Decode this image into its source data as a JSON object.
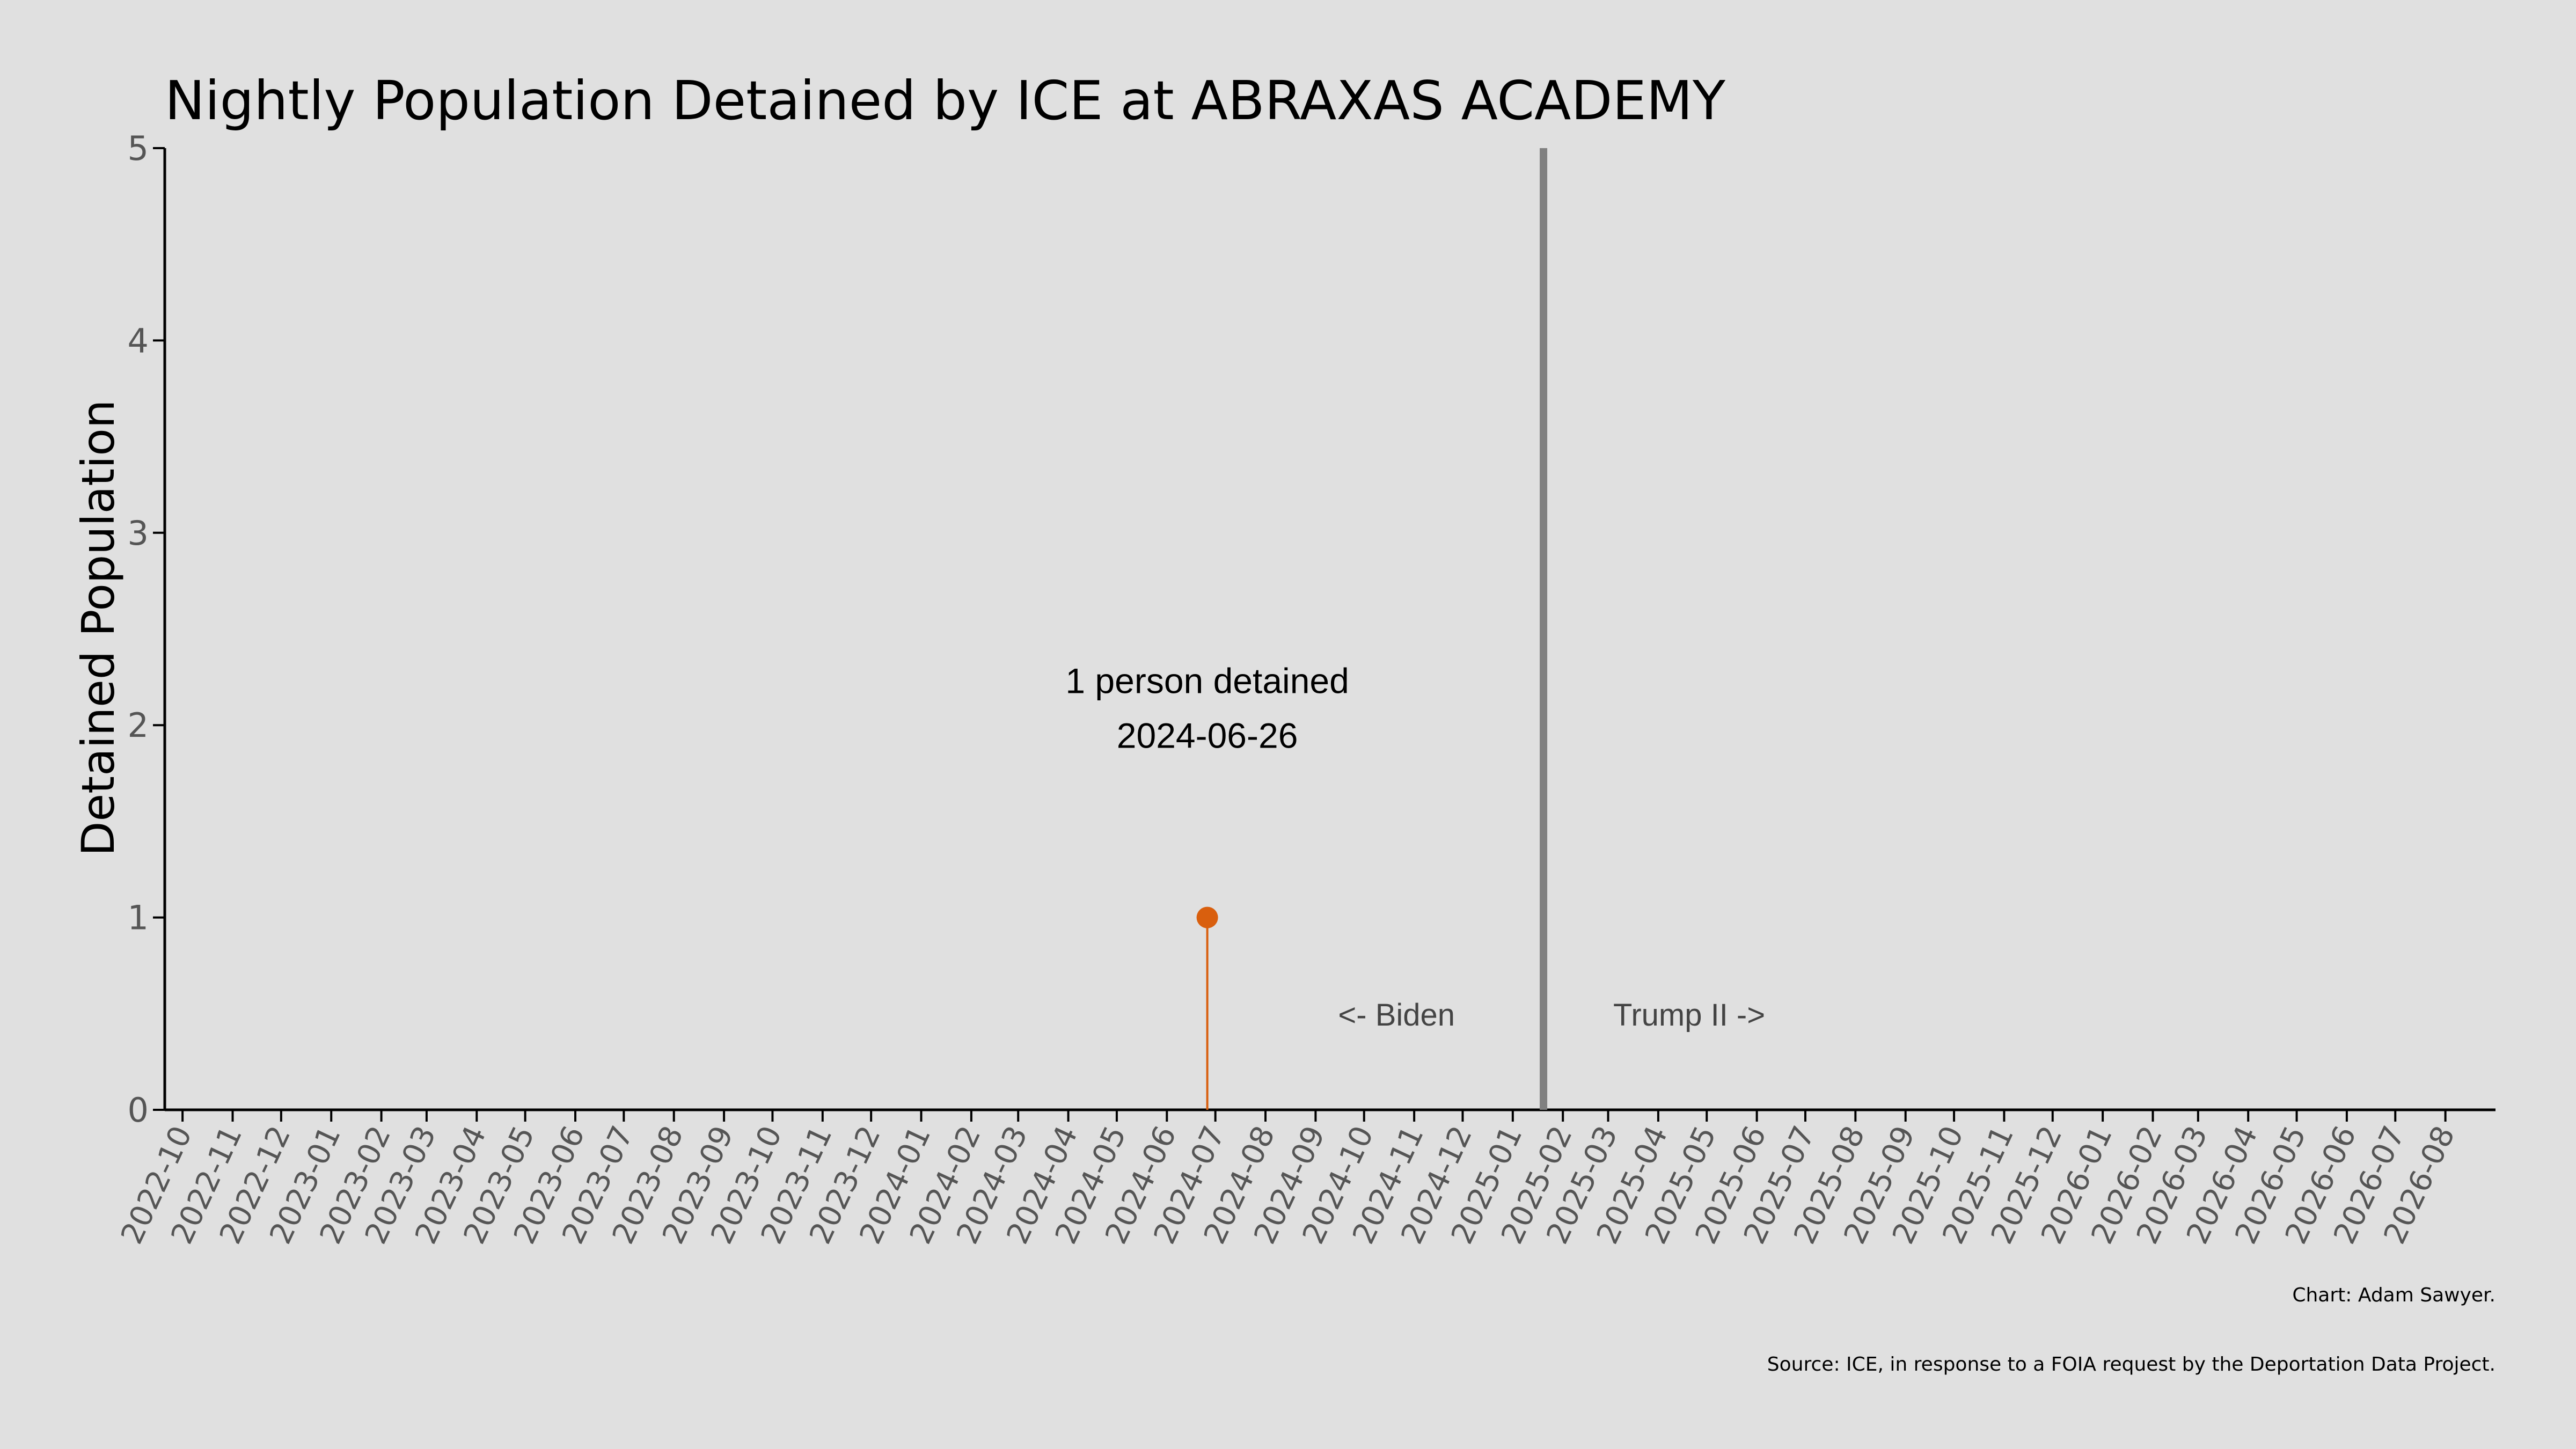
{
  "chart_data": {
    "type": "scatter",
    "title": "Nightly Population Detained by ICE at ABRAXAS ACADEMY",
    "ylabel": "Detained Population",
    "xlabel": "",
    "xlim": [
      "2022-09-20",
      "2026-09-01"
    ],
    "ylim": [
      0,
      5
    ],
    "yticks": [
      0,
      1,
      2,
      3,
      4,
      5
    ],
    "xticks": [
      "2022-10",
      "2022-11",
      "2022-12",
      "2023-01",
      "2023-02",
      "2023-03",
      "2023-04",
      "2023-05",
      "2023-06",
      "2023-07",
      "2023-08",
      "2023-09",
      "2023-10",
      "2023-11",
      "2023-12",
      "2024-01",
      "2024-02",
      "2024-03",
      "2024-04",
      "2024-05",
      "2024-06",
      "2024-07",
      "2024-08",
      "2024-09",
      "2024-10",
      "2024-11",
      "2024-12",
      "2025-01",
      "2025-02",
      "2025-03",
      "2025-04",
      "2025-05",
      "2025-06",
      "2025-07",
      "2025-08",
      "2025-09",
      "2025-10",
      "2025-11",
      "2025-12",
      "2026-01",
      "2026-02",
      "2026-03",
      "2026-04",
      "2026-05",
      "2026-06",
      "2026-07",
      "2026-08"
    ],
    "grid": false,
    "points": [
      {
        "x": "2024-06-26",
        "y": 1
      }
    ],
    "point_color": "#d95f0e",
    "divider": {
      "x": "2025-01-20",
      "color": "#808080"
    },
    "annotation": {
      "line1": "1 person detained",
      "line2": "2024-06-26",
      "x": "2024-06-26",
      "y": 2.1
    },
    "era_labels": {
      "left": "<- Biden",
      "right": "Trump II ->",
      "y": 0.5
    },
    "credit_line1": "Chart: Adam Sawyer.",
    "credit_line2": "Source: ICE, in response to a FOIA request by the Deportation Data Project."
  }
}
